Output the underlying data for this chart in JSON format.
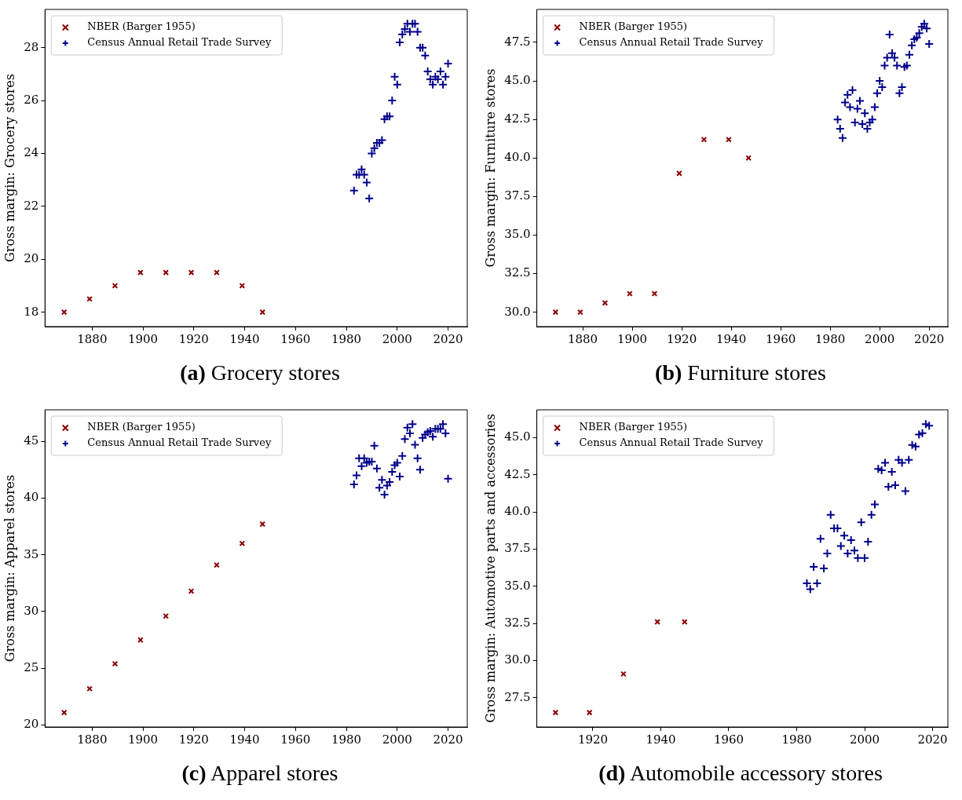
{
  "chart_data": [
    {
      "type": "scatter",
      "title": "(a) Grocery stores",
      "ylabel": "Gross margin: Grocery stores",
      "legend": "top left",
      "xlim": [
        1861.45,
        2027.55
      ],
      "ylim": [
        17.455,
        29.445
      ],
      "xticks": [
        1880,
        1900,
        1920,
        1940,
        1960,
        1980,
        2000,
        2020
      ],
      "yticks": [
        18,
        20,
        22,
        24,
        26,
        28
      ],
      "series": [
        {
          "name": "NBER (Barger 1955)",
          "color": "#8b0000",
          "marker": "x",
          "x": [
            1869,
            1879,
            1889,
            1899,
            1909,
            1919,
            1929,
            1939,
            1947
          ],
          "values": [
            18,
            18.5,
            19,
            19.5,
            19.5,
            19.5,
            19.5,
            19,
            18
          ]
        },
        {
          "name": "Census Annual Retail Trade Survey",
          "color": "#00008b",
          "marker": "cross",
          "x": [
            1983,
            1984,
            1985,
            1986,
            1987,
            1988,
            1989,
            1990,
            1991,
            1992,
            1993,
            1994,
            1995,
            1996,
            1997,
            1998,
            1999,
            2000,
            2001,
            2002,
            2003,
            2004,
            2005,
            2006,
            2007,
            2008,
            2009,
            2010,
            2011,
            2012,
            2013,
            2014,
            2015,
            2016,
            2017,
            2018,
            2019,
            2020
          ],
          "values": [
            22.6,
            23.2,
            23.2,
            23.4,
            23.2,
            22.9,
            22.3,
            24.0,
            24.2,
            24.4,
            24.4,
            24.5,
            25.3,
            25.4,
            25.4,
            26.0,
            26.9,
            26.6,
            28.2,
            28.5,
            28.7,
            28.9,
            28.6,
            28.9,
            28.9,
            28.6,
            28.0,
            28.0,
            27.7,
            27.1,
            26.8,
            26.6,
            26.9,
            26.8,
            27.1,
            26.6,
            26.9,
            27.4
          ]
        }
      ]
    },
    {
      "type": "scatter",
      "title": "(b) Furniture stores",
      "ylabel": "Gross margin: Furniture stores",
      "legend": "top left",
      "xlim": [
        1861.45,
        2027.55
      ],
      "ylim": [
        29.065,
        49.635
      ],
      "xticks": [
        1880,
        1900,
        1920,
        1940,
        1960,
        1980,
        2000,
        2020
      ],
      "yticks": [
        {
          "value": 30,
          "label": "30.0"
        },
        {
          "value": 32.5,
          "label": "32.5"
        },
        {
          "value": 35,
          "label": "35.0"
        },
        {
          "value": 37.5,
          "label": "37.5"
        },
        {
          "value": 40,
          "label": "40.0"
        },
        {
          "value": 42.5,
          "label": "42.5"
        },
        {
          "value": 45,
          "label": "45.0"
        },
        {
          "value": 47.5,
          "label": "47.5"
        }
      ],
      "series": [
        {
          "name": "NBER (Barger 1955)",
          "color": "#8b0000",
          "marker": "x",
          "x": [
            1869,
            1879,
            1889,
            1899,
            1909,
            1919,
            1929,
            1939,
            1947
          ],
          "values": [
            30,
            30,
            30.6,
            31.2,
            31.2,
            39.0,
            41.2,
            41.2,
            40.0
          ]
        },
        {
          "name": "Census Annual Retail Trade Survey",
          "color": "#00008b",
          "marker": "cross",
          "x": [
            1983,
            1984,
            1985,
            1986,
            1987,
            1988,
            1989,
            1990,
            1991,
            1992,
            1993,
            1994,
            1995,
            1996,
            1997,
            1998,
            1999,
            2000,
            2001,
            2002,
            2003,
            2004,
            2005,
            2006,
            2007,
            2008,
            2009,
            2010,
            2011,
            2012,
            2013,
            2014,
            2015,
            2016,
            2017,
            2018,
            2019,
            2020
          ],
          "values": [
            42.5,
            41.9,
            41.3,
            43.6,
            44.1,
            43.3,
            44.4,
            42.3,
            43.2,
            43.7,
            42.2,
            42.9,
            41.9,
            42.3,
            42.5,
            43.3,
            44.2,
            45.0,
            44.6,
            46.0,
            46.5,
            48.0,
            46.8,
            46.5,
            46.0,
            44.2,
            44.6,
            45.9,
            46.0,
            46.7,
            47.3,
            47.7,
            47.8,
            48.1,
            48.5,
            48.7,
            48.4,
            47.4
          ]
        }
      ]
    },
    {
      "type": "scatter",
      "title": "(c) Apparel stores",
      "ylabel": "Gross margin: Apparel stores",
      "legend": "top left",
      "xlim": [
        1861.45,
        2027.55
      ],
      "ylim": [
        19.83,
        47.77
      ],
      "xticks": [
        1880,
        1900,
        1920,
        1940,
        1960,
        1980,
        2000,
        2020
      ],
      "yticks": [
        20,
        25,
        30,
        35,
        40,
        45
      ],
      "series": [
        {
          "name": "NBER (Barger 1955)",
          "color": "#8b0000",
          "marker": "x",
          "x": [
            1869,
            1879,
            1889,
            1899,
            1909,
            1919,
            1929,
            1939,
            1947
          ],
          "values": [
            21.1,
            23.2,
            25.4,
            27.5,
            29.6,
            31.8,
            34.1,
            36.0,
            37.7
          ]
        },
        {
          "name": "Census Annual Retail Trade Survey",
          "color": "#00008b",
          "marker": "cross",
          "x": [
            1983,
            1984,
            1985,
            1986,
            1987,
            1988,
            1989,
            1990,
            1991,
            1992,
            1993,
            1994,
            1995,
            1996,
            1997,
            1998,
            1999,
            2000,
            2001,
            2002,
            2003,
            2004,
            2005,
            2006,
            2007,
            2008,
            2009,
            2010,
            2011,
            2012,
            2013,
            2014,
            2015,
            2016,
            2017,
            2018,
            2019,
            2020
          ],
          "values": [
            41.2,
            42.0,
            43.5,
            42.8,
            43.5,
            43.1,
            43.2,
            43.2,
            44.6,
            42.6,
            40.9,
            41.6,
            40.3,
            41.1,
            41.4,
            42.3,
            42.9,
            43.1,
            41.9,
            43.7,
            45.2,
            46.2,
            45.7,
            46.5,
            44.7,
            43.5,
            42.5,
            45.3,
            45.6,
            45.8,
            45.9,
            45.4,
            46.1,
            46.1,
            46.1,
            46.5,
            45.7,
            41.7
          ]
        }
      ]
    },
    {
      "type": "scatter",
      "title": "(d) Automobile accessory stores",
      "ylabel": "Gross margin: Automotive parts and accessories",
      "legend": "top left",
      "xlim": [
        1903.5,
        2024.5
      ],
      "ylim": [
        25.53,
        46.87
      ],
      "xticks": [
        1920,
        1940,
        1960,
        1980,
        2000,
        2020
      ],
      "yticks": [
        {
          "value": 27.5,
          "label": "27.5"
        },
        {
          "value": 30,
          "label": "30.0"
        },
        {
          "value": 32.5,
          "label": "32.5"
        },
        {
          "value": 35,
          "label": "35.0"
        },
        {
          "value": 37.5,
          "label": "37.5"
        },
        {
          "value": 40,
          "label": "40.0"
        },
        {
          "value": 42.5,
          "label": "42.5"
        },
        {
          "value": 45,
          "label": "45.0"
        }
      ],
      "series": [
        {
          "name": "NBER (Barger 1955)",
          "color": "#8b0000",
          "marker": "x",
          "x": [
            1909,
            1919,
            1929,
            1939,
            1947
          ],
          "values": [
            26.5,
            26.5,
            29.1,
            32.6,
            32.6
          ]
        },
        {
          "name": "Census Annual Retail Trade Survey",
          "color": "#00008b",
          "marker": "cross",
          "x": [
            1983,
            1984,
            1985,
            1986,
            1987,
            1988,
            1989,
            1990,
            1991,
            1992,
            1993,
            1994,
            1995,
            1996,
            1997,
            1998,
            1999,
            2000,
            2001,
            2002,
            2003,
            2004,
            2005,
            2006,
            2007,
            2008,
            2009,
            2010,
            2011,
            2012,
            2013,
            2014,
            2015,
            2016,
            2017,
            2018,
            2019
          ],
          "values": [
            35.2,
            34.8,
            36.3,
            35.2,
            38.2,
            36.2,
            37.2,
            39.8,
            38.9,
            38.9,
            37.7,
            38.4,
            37.2,
            38.1,
            37.4,
            36.9,
            39.3,
            36.9,
            38.0,
            39.8,
            40.5,
            42.9,
            42.8,
            43.3,
            41.7,
            42.7,
            41.8,
            43.5,
            43.3,
            41.4,
            43.5,
            44.5,
            44.4,
            45.2,
            45.3,
            45.9,
            45.8
          ]
        }
      ]
    }
  ]
}
